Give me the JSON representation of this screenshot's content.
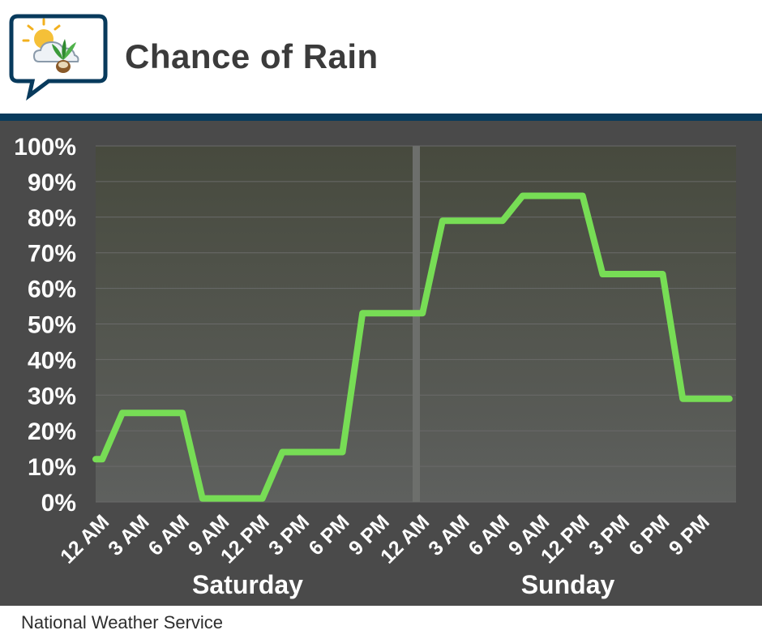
{
  "header": {
    "title": "Chance of Rain",
    "logo_icon": "weather-bubble-logo-icon"
  },
  "footer": {
    "source": "National Weather Service"
  },
  "colors": {
    "line": "#77dd55",
    "header_rule": "#083a5c",
    "panel": "#4a4a4a",
    "grid": "#6a6a6a",
    "tick_text": "#ffffff"
  },
  "chart_data": {
    "type": "line",
    "title": "Chance of Rain",
    "ylim": [
      0,
      100
    ],
    "yticks": [
      "0%",
      "10%",
      "20%",
      "30%",
      "40%",
      "50%",
      "60%",
      "70%",
      "80%",
      "90%",
      "100%"
    ],
    "xticks": [
      "12 AM",
      "3 AM",
      "6 AM",
      "9 AM",
      "12 PM",
      "3 PM",
      "6 PM",
      "9 PM",
      "12 AM",
      "3 AM",
      "6 AM",
      "9 AM",
      "12 PM",
      "3 PM",
      "6 PM",
      "9 PM"
    ],
    "day_groups": [
      {
        "label": "Saturday",
        "start_hour": 0,
        "end_hour": 24
      },
      {
        "label": "Sunday",
        "start_hour": 24,
        "end_hour": 48
      }
    ],
    "x_range_hours": [
      0,
      48
    ],
    "grid": true,
    "line_style": "step",
    "points": [
      {
        "hour": 0,
        "value": 12
      },
      {
        "hour": 0.5,
        "value": 12
      },
      {
        "hour": 2,
        "value": 25
      },
      {
        "hour": 6.5,
        "value": 25
      },
      {
        "hour": 8,
        "value": 1
      },
      {
        "hour": 12.5,
        "value": 1
      },
      {
        "hour": 14,
        "value": 14
      },
      {
        "hour": 18.5,
        "value": 14
      },
      {
        "hour": 20,
        "value": 53
      },
      {
        "hour": 24.5,
        "value": 53
      },
      {
        "hour": 26,
        "value": 79
      },
      {
        "hour": 30.5,
        "value": 79
      },
      {
        "hour": 32,
        "value": 86
      },
      {
        "hour": 36.5,
        "value": 86
      },
      {
        "hour": 38,
        "value": 64
      },
      {
        "hour": 42.5,
        "value": 64
      },
      {
        "hour": 44,
        "value": 29
      },
      {
        "hour": 47.5,
        "value": 29
      }
    ]
  }
}
